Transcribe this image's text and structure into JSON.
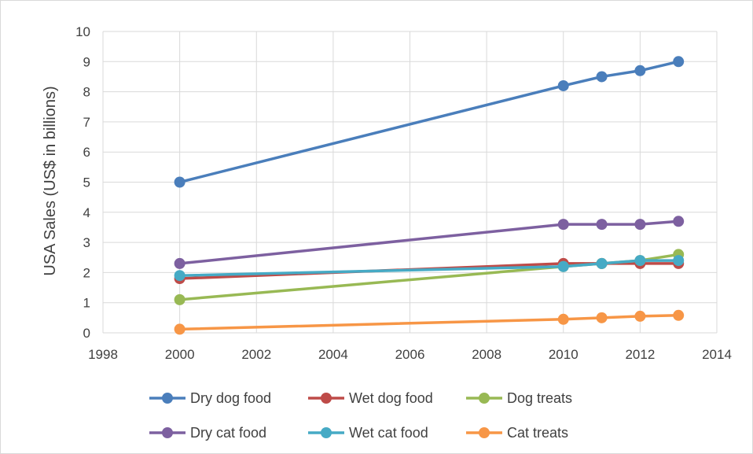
{
  "chart_data": {
    "type": "line",
    "title": "",
    "xlabel": "",
    "ylabel": "USA Sales (US$ in billions)",
    "xlim": [
      1998,
      2014
    ],
    "ylim": [
      0,
      10
    ],
    "x_ticks": [
      "1998",
      "2000",
      "2002",
      "2004",
      "2006",
      "2008",
      "2010",
      "2012",
      "2014"
    ],
    "y_ticks": [
      "0",
      "1",
      "2",
      "3",
      "4",
      "5",
      "6",
      "7",
      "8",
      "9",
      "10"
    ],
    "grid": true,
    "legend_position": "bottom",
    "series": [
      {
        "name": "Dry dog food",
        "color": "#4a7ebb",
        "x": [
          2000,
          2010,
          2011,
          2012,
          2013
        ],
        "y": [
          5.0,
          8.2,
          8.5,
          8.7,
          9.0
        ]
      },
      {
        "name": "Wet dog food",
        "color": "#be4b48",
        "x": [
          2000,
          2010,
          2011,
          2012,
          2013
        ],
        "y": [
          1.8,
          2.3,
          2.3,
          2.3,
          2.3
        ]
      },
      {
        "name": "Dog treats",
        "color": "#98b954",
        "x": [
          2000,
          2010,
          2011,
          2012,
          2013
        ],
        "y": [
          1.1,
          2.2,
          2.3,
          2.4,
          2.6
        ]
      },
      {
        "name": "Dry cat food",
        "color": "#7d60a0",
        "x": [
          2000,
          2010,
          2011,
          2012,
          2013
        ],
        "y": [
          2.3,
          3.6,
          3.6,
          3.6,
          3.7
        ]
      },
      {
        "name": "Wet cat food",
        "color": "#46aac5",
        "x": [
          2000,
          2010,
          2011,
          2012,
          2013
        ],
        "y": [
          1.9,
          2.2,
          2.3,
          2.4,
          2.4
        ]
      },
      {
        "name": "Cat treats",
        "color": "#f79646",
        "x": [
          2000,
          2010,
          2011,
          2012,
          2013
        ],
        "y": [
          0.12,
          0.45,
          0.5,
          0.55,
          0.58
        ]
      }
    ]
  }
}
